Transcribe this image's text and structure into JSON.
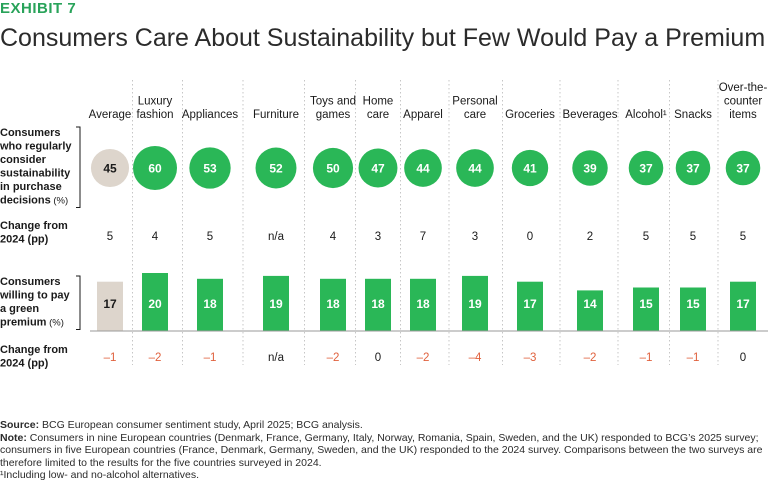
{
  "exhibit": "EXHIBIT 7",
  "title": "Consumers Care About Sustainability but Few Would Pay a Premium",
  "chart_data": {
    "type": "table",
    "categories": [
      [
        "Average"
      ],
      [
        "Luxury",
        "fashion"
      ],
      [
        "Appliances"
      ],
      [
        "Furniture"
      ],
      [
        "Toys and",
        "games"
      ],
      [
        "Home",
        "care"
      ],
      [
        "Apparel"
      ],
      [
        "Personal",
        "care"
      ],
      [
        "Groceries"
      ],
      [
        "Beverages"
      ],
      [
        "Alcohol¹"
      ],
      [
        "Snacks"
      ],
      [
        "Over-the-",
        "counter",
        "items"
      ]
    ],
    "rows": {
      "consider": {
        "label": [
          "Consumers",
          "who regularly",
          "consider",
          "sustainability",
          "in purchase",
          "decisions"
        ],
        "unit": "(%)",
        "values": [
          45,
          60,
          53,
          52,
          50,
          47,
          44,
          44,
          41,
          39,
          37,
          37,
          37
        ]
      },
      "consider_change": {
        "label": [
          "Change from",
          "2024 (pp)"
        ],
        "values": [
          "5",
          "4",
          "5",
          "n/a",
          "4",
          "3",
          "7",
          "3",
          "0",
          "2",
          "5",
          "5",
          "5"
        ]
      },
      "pay": {
        "label": [
          "Consumers",
          "willing to pay",
          "a green",
          "premium"
        ],
        "unit": "(%)",
        "values": [
          17,
          20,
          18,
          19,
          18,
          18,
          18,
          19,
          17,
          14,
          15,
          15,
          17
        ]
      },
      "pay_change": {
        "label": [
          "Change from",
          "2024 (pp)"
        ],
        "values": [
          "–1",
          "–2",
          "–1",
          "n/a",
          "–2",
          "0",
          "–2",
          "–4",
          "–3",
          "–2",
          "–1",
          "–1",
          "0"
        ]
      }
    },
    "colors": {
      "green": "#2ab757",
      "average": "#ddd5cc",
      "negative": "#e0613d",
      "exhibit": "#29a35a"
    }
  },
  "footer": {
    "source_label": "Source:",
    "source_text": "BCG European consumer sentiment study, April 2025; BCG analysis.",
    "note_label": "Note:",
    "note_text": "Consumers in nine European countries (Denmark, France, Germany, Italy, Norway, Romania, Spain, Sweden, and the UK) responded to BCG’s 2025 survey; consumers in five European countries (France, Denmark, Germany, Sweden, and the UK) responded to the 2024 survey. Comparisons between the two surveys are therefore limited to the results for the five countries surveyed in 2024.",
    "footnote": "¹Including low- and no-alcohol alternatives."
  }
}
